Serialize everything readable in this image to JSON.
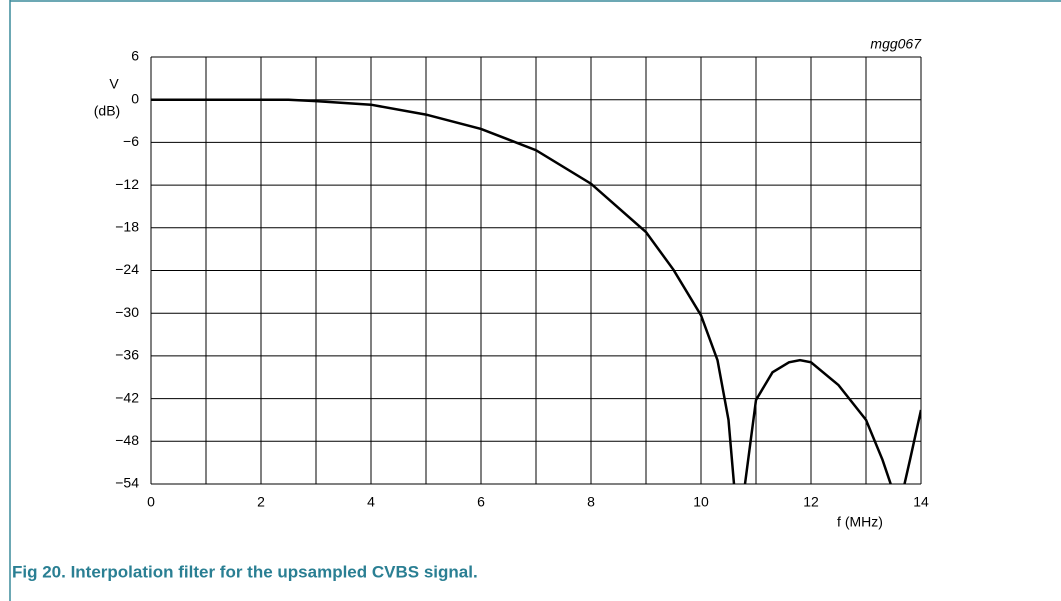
{
  "chart_data": {
    "type": "line",
    "id_label": "mgg067",
    "ylabel": [
      "V",
      "(dB)"
    ],
    "xlabel": "f (MHz)",
    "caption": "Fig 20. Interpolation filter for the upsampled CVBS signal.",
    "x": [
      0,
      1,
      2,
      2.5,
      3,
      4,
      5,
      6,
      7,
      8,
      9,
      9.5,
      10,
      10.3,
      10.5,
      10.6,
      10.7,
      10.8,
      11,
      11.3,
      11.6,
      11.8,
      12,
      12.5,
      13,
      13.3,
      13.45,
      13.55,
      13.7,
      13.8,
      14
    ],
    "series": [
      {
        "name": "response",
        "color": "#000000",
        "values": [
          0,
          0,
          0,
          0,
          -0.2,
          -0.7,
          -2.1,
          -4.1,
          -7.1,
          -11.8,
          -18.6,
          -23.9,
          -30.3,
          -36.6,
          -45,
          -54,
          null,
          -54,
          -42.2,
          -38.3,
          -36.9,
          -36.6,
          -36.9,
          -40.1,
          -45,
          -50.6,
          -54,
          null,
          -54,
          -50.6,
          -43.6
        ]
      }
    ],
    "xlim": [
      0,
      14
    ],
    "xticks": [
      0,
      2,
      4,
      6,
      8,
      10,
      12,
      14
    ],
    "xgrid_minor": [
      1,
      3,
      5,
      7,
      9,
      11,
      13
    ],
    "ylim": [
      -54,
      6
    ],
    "yticks": [
      {
        "value": -54,
        "label": "−54"
      },
      {
        "value": -48,
        "label": "−48"
      },
      {
        "value": -42,
        "label": "−42"
      },
      {
        "value": -36,
        "label": "−36"
      },
      {
        "value": -30,
        "label": "−30"
      },
      {
        "value": -24,
        "label": "−24"
      },
      {
        "value": -18,
        "label": "−18"
      },
      {
        "value": -12,
        "label": "−12"
      },
      {
        "value": -6,
        "label": "−6"
      },
      0,
      6
    ],
    "grid": true
  }
}
